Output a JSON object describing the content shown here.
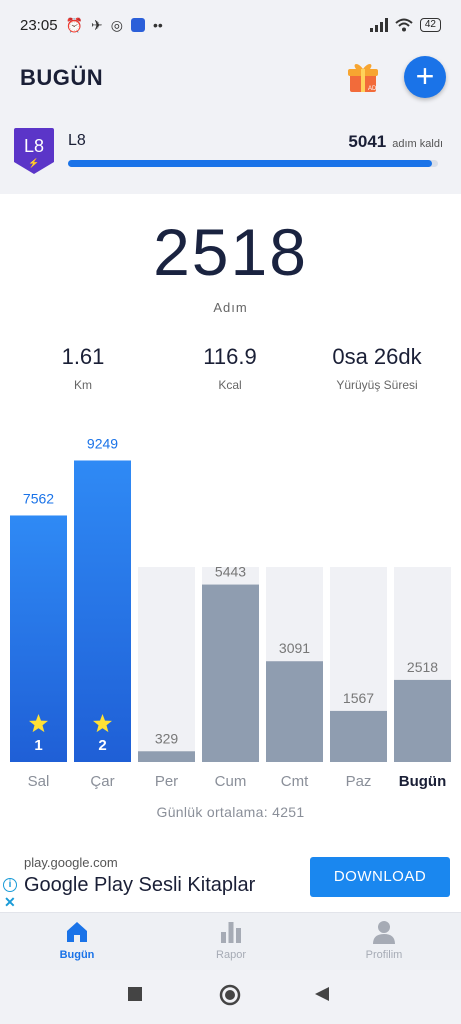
{
  "status_bar": {
    "time": "23:05",
    "battery": "42"
  },
  "header": {
    "title": "BUGÜN",
    "gift_badge": "AD"
  },
  "level": {
    "badge": "L8",
    "name": "L8",
    "remaining_steps": "5041",
    "remaining_label": "adım kaldı",
    "progress": 0.985
  },
  "summary": {
    "steps": "2518",
    "steps_label": "Adım",
    "distance": "1.61",
    "distance_label": "Km",
    "calories": "116.9",
    "calories_label": "Kcal",
    "duration": "0sa 26dk",
    "duration_label": "Yürüyüş Süresi"
  },
  "chart_data": {
    "type": "bar",
    "categories": [
      "Sal",
      "Çar",
      "Per",
      "Cum",
      "Cmt",
      "Paz",
      "Bugün"
    ],
    "values": [
      7562,
      9249,
      329,
      5443,
      3091,
      1567,
      2518
    ],
    "goal_reached": [
      true,
      true,
      false,
      false,
      false,
      false,
      false
    ],
    "goal_numbers": [
      "1",
      "2",
      "",
      "",
      "",
      "",
      ""
    ],
    "ylim": [
      0,
      10000
    ],
    "colors": {
      "goal": "#1a73e8",
      "goal_light": "#2f8af5",
      "normal": "#8f9db0",
      "track": "#f0f1f5",
      "label_goal": "#1a73e8",
      "label_normal": "#777777"
    }
  },
  "average": "Günlük ortalama: 4251",
  "ad": {
    "domain": "play.google.com",
    "title": "Google Play Sesli Kitaplar",
    "cta": "DOWNLOAD"
  },
  "nav": {
    "today": "Bugün",
    "report": "Rapor",
    "profile": "Profilim"
  },
  "colors": {
    "accent": "#1a73e8"
  }
}
